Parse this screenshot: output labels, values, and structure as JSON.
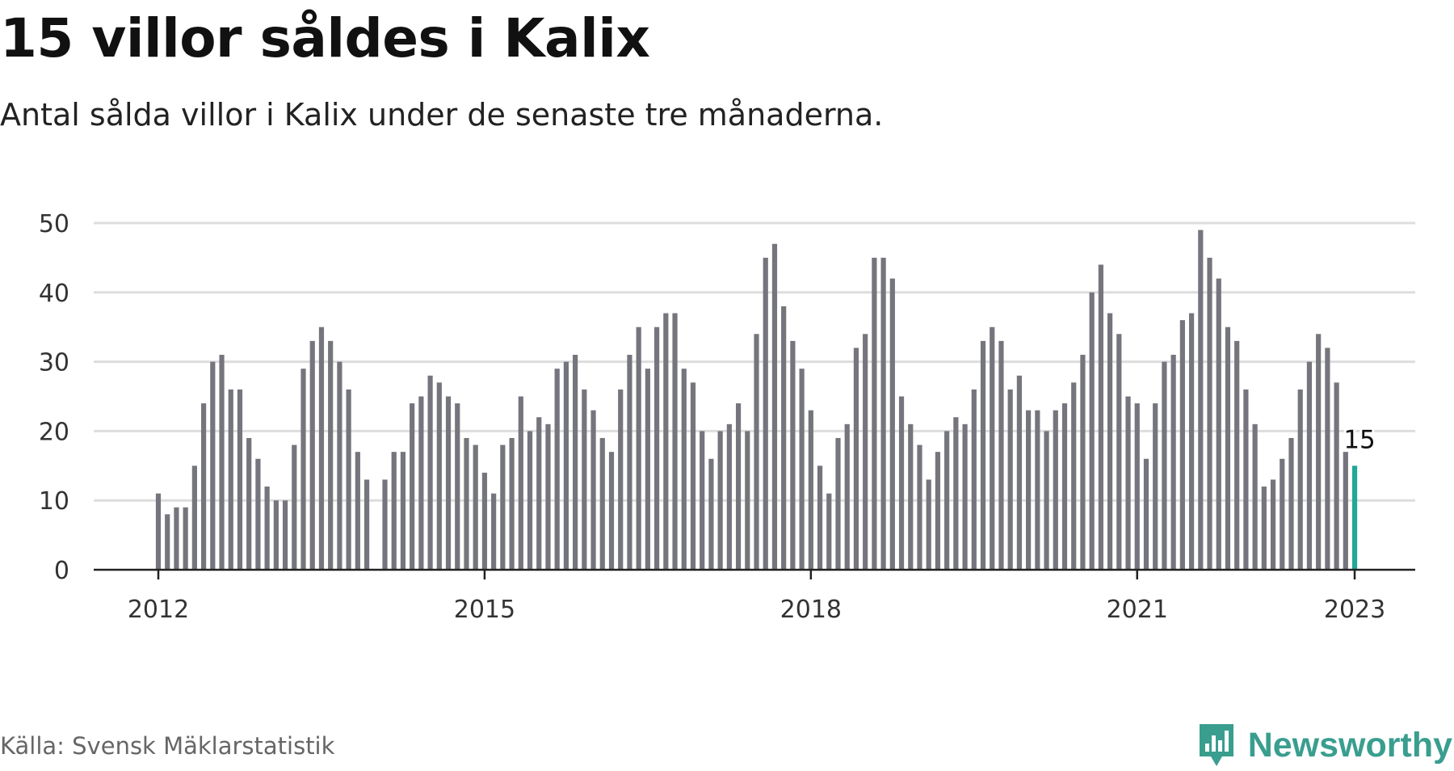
{
  "header": {
    "title": "15 villor såldes i Kalix",
    "subtitle": "Antal sålda villor i Kalix under de senaste tre månaderna."
  },
  "footer": {
    "source": "Källa: Svensk Mäklarstatistik",
    "brand": "Newsworthy"
  },
  "colors": {
    "bar": "#75757d",
    "highlight": "#20a898",
    "grid": "#dddddd",
    "axis": "#222222",
    "brand": "#3a9e8f"
  },
  "chart_data": {
    "type": "bar",
    "title": "15 villor såldes i Kalix",
    "xlabel": "",
    "ylabel": "",
    "ylim": [
      0,
      50
    ],
    "yticks": [
      0,
      10,
      20,
      30,
      40,
      50
    ],
    "start": "2012-01",
    "x_tick_labels": [
      "2012",
      "2015",
      "2018",
      "2021",
      "2023"
    ],
    "x_tick_index": [
      0,
      36,
      72,
      108,
      132
    ],
    "highlight_index": 132,
    "highlight_label": "15",
    "values": [
      11,
      8,
      9,
      9,
      15,
      24,
      30,
      31,
      26,
      26,
      19,
      16,
      12,
      10,
      10,
      18,
      29,
      33,
      35,
      33,
      30,
      26,
      17,
      13,
      0,
      13,
      17,
      17,
      24,
      25,
      28,
      27,
      25,
      24,
      19,
      18,
      14,
      11,
      18,
      19,
      25,
      20,
      22,
      21,
      29,
      30,
      31,
      26,
      23,
      19,
      17,
      26,
      31,
      35,
      29,
      35,
      37,
      37,
      29,
      27,
      20,
      16,
      20,
      21,
      24,
      20,
      34,
      45,
      47,
      38,
      33,
      29,
      23,
      15,
      11,
      19,
      21,
      32,
      34,
      45,
      45,
      42,
      25,
      21,
      18,
      13,
      17,
      20,
      22,
      21,
      26,
      33,
      35,
      33,
      26,
      28,
      23,
      23,
      20,
      23,
      24,
      27,
      31,
      40,
      44,
      37,
      34,
      25,
      24,
      16,
      24,
      30,
      31,
      36,
      37,
      49,
      45,
      42,
      35,
      33,
      26,
      21,
      12,
      13,
      16,
      19,
      26,
      30,
      34,
      32,
      27,
      17,
      15
    ]
  }
}
